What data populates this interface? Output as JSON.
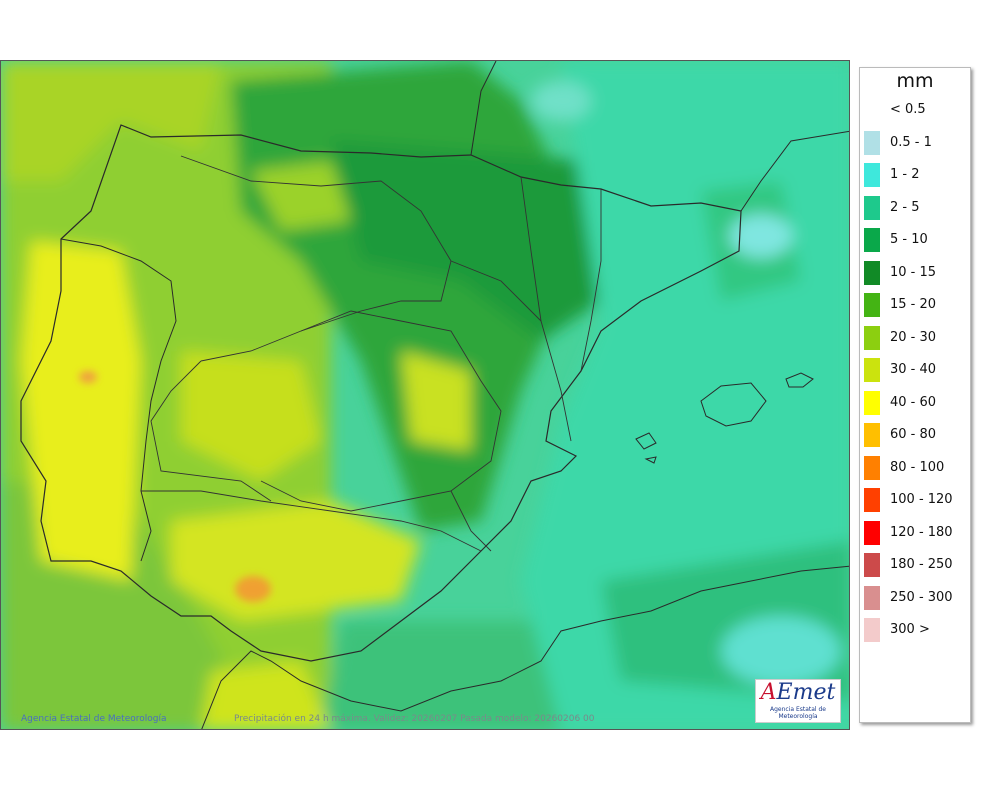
{
  "footer": {
    "agency": "Agencia Estatal de Meteorología",
    "caption": "Precipitación en 24 h máxima. Validez: 20260207 Pasada modelo: 20260206 00"
  },
  "logo": {
    "text": "AEmet",
    "subtitle": "Agencia Estatal de Meteorología"
  },
  "legend": {
    "unit": "mm",
    "items": [
      {
        "label": "< 0.5",
        "color": "#ffffff"
      },
      {
        "label": "0.5 - 1",
        "color": "#b0e0e6"
      },
      {
        "label": "1 - 2",
        "color": "#3ee8dc"
      },
      {
        "label": "2 - 5",
        "color": "#1ec98c"
      },
      {
        "label": "5 - 10",
        "color": "#0aa84a"
      },
      {
        "label": "10 - 15",
        "color": "#118a26"
      },
      {
        "label": "15 - 20",
        "color": "#44b414"
      },
      {
        "label": "20 - 30",
        "color": "#8ccf10"
      },
      {
        "label": "30 - 40",
        "color": "#cbe30e"
      },
      {
        "label": "40 - 60",
        "color": "#ffff00"
      },
      {
        "label": "60 - 80",
        "color": "#ffbf00"
      },
      {
        "label": "80 - 100",
        "color": "#ff8000"
      },
      {
        "label": "100 - 120",
        "color": "#ff4000"
      },
      {
        "label": "120 - 180",
        "color": "#ff0000"
      },
      {
        "label": "180 - 250",
        "color": "#cc4a4a"
      },
      {
        "label": "250 - 300",
        "color": "#d98f8f"
      },
      {
        "label": "300 >",
        "color": "#f3cbcb"
      }
    ]
  }
}
